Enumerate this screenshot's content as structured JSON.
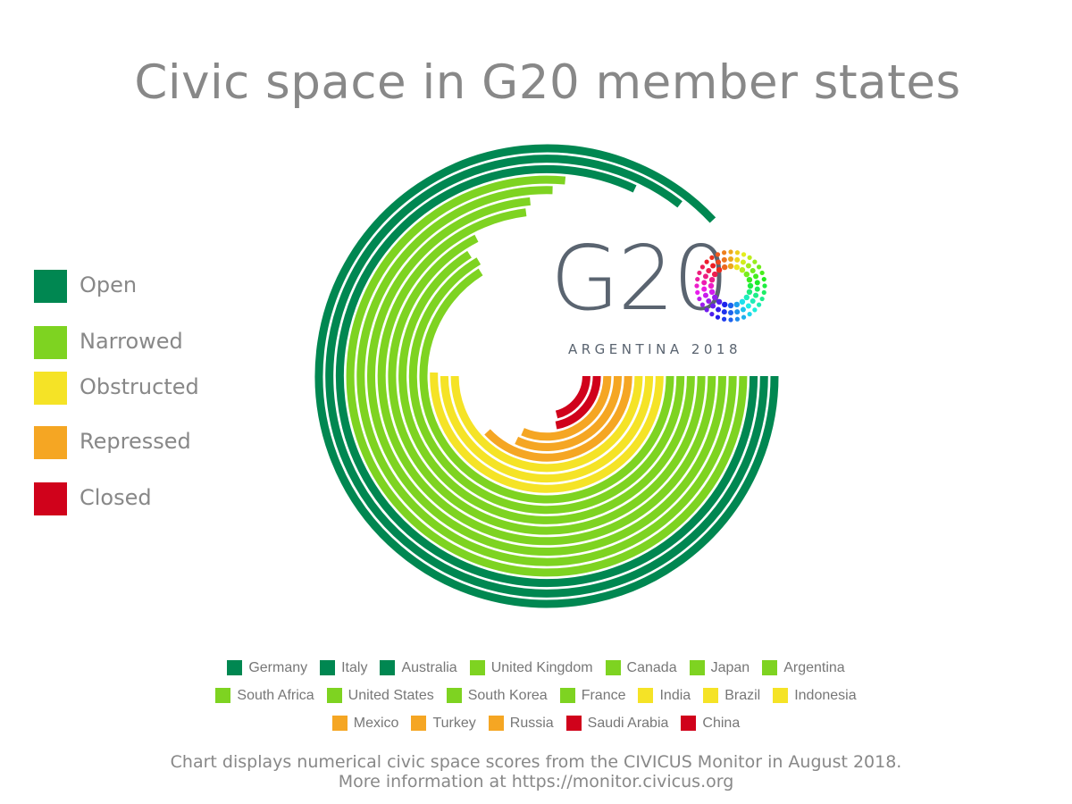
{
  "chart_data": {
    "type": "radial-bar",
    "title": "Civic space in G20 member states",
    "categories": [
      {
        "name": "Open",
        "color": "#008751"
      },
      {
        "name": "Narrowed",
        "color": "#7ed321"
      },
      {
        "name": "Obstructed",
        "color": "#f5e326"
      },
      {
        "name": "Repressed",
        "color": "#f5a623"
      },
      {
        "name": "Closed",
        "color": "#d0021b"
      }
    ],
    "series": [
      {
        "name": "Germany",
        "category": "Open",
        "value": 88.0
      },
      {
        "name": "Italy",
        "category": "Open",
        "value": 85.5
      },
      {
        "name": "Australia",
        "category": "Open",
        "value": 82.0
      },
      {
        "name": "United Kingdom",
        "category": "Narrowed",
        "value": 76.5
      },
      {
        "name": "Canada",
        "category": "Narrowed",
        "value": 75.5
      },
      {
        "name": "Japan",
        "category": "Narrowed",
        "value": 73.5
      },
      {
        "name": "Argentina",
        "category": "Narrowed",
        "value": 73.0
      },
      {
        "name": "South Africa",
        "category": "Narrowed",
        "value": 67.5
      },
      {
        "name": "United States",
        "category": "Narrowed",
        "value": 66.0
      },
      {
        "name": "South Korea",
        "category": "Narrowed",
        "value": 66.5
      },
      {
        "name": "France",
        "category": "Narrowed",
        "value": 66.0
      },
      {
        "name": "India",
        "category": "Obstructed",
        "value": 50.5
      },
      {
        "name": "Brazil",
        "category": "Obstructed",
        "value": 50.0
      },
      {
        "name": "Indonesia",
        "category": "Obstructed",
        "value": 50.0
      },
      {
        "name": "Mexico",
        "category": "Repressed",
        "value": 38.0
      },
      {
        "name": "Turkey",
        "category": "Repressed",
        "value": 32.0
      },
      {
        "name": "Russia",
        "category": "Repressed",
        "value": 31.5
      },
      {
        "name": "Saudi Arabia",
        "category": "Closed",
        "value": 22.0
      },
      {
        "name": "China",
        "category": "Closed",
        "value": 21.0
      }
    ],
    "ylim": [
      0,
      100
    ],
    "legend": "bottom"
  },
  "logo": {
    "text": "G20",
    "subtitle": "ARGENTINA 2018"
  },
  "footer": {
    "line1": "Chart displays numerical civic space scores from the CIVICUS Monitor in August 2018.",
    "line2": "More information at https://monitor.civicus.org"
  }
}
